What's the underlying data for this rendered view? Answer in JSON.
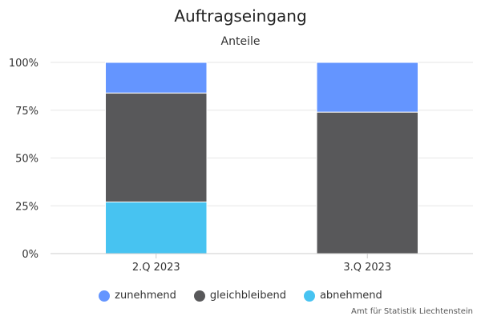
{
  "chart_data": {
    "type": "bar",
    "stacked": true,
    "title": "Auftragseingang",
    "subtitle": "Anteile",
    "categories": [
      "2.Q 2023",
      "3.Q 2023"
    ],
    "series": [
      {
        "name": "zunehmend",
        "color": "#6495ff",
        "values": [
          16,
          26
        ]
      },
      {
        "name": "gleichbleibend",
        "color": "#58585a",
        "values": [
          57,
          74
        ]
      },
      {
        "name": "abnehmend",
        "color": "#47c3f1",
        "values": [
          27,
          0
        ]
      }
    ],
    "yticks": [
      "0%",
      "25%",
      "50%",
      "75%",
      "100%"
    ],
    "ylim": [
      0,
      100
    ],
    "grid": true,
    "legend": "bottom"
  },
  "credits": "Amt für Statistik Liechtenstein"
}
